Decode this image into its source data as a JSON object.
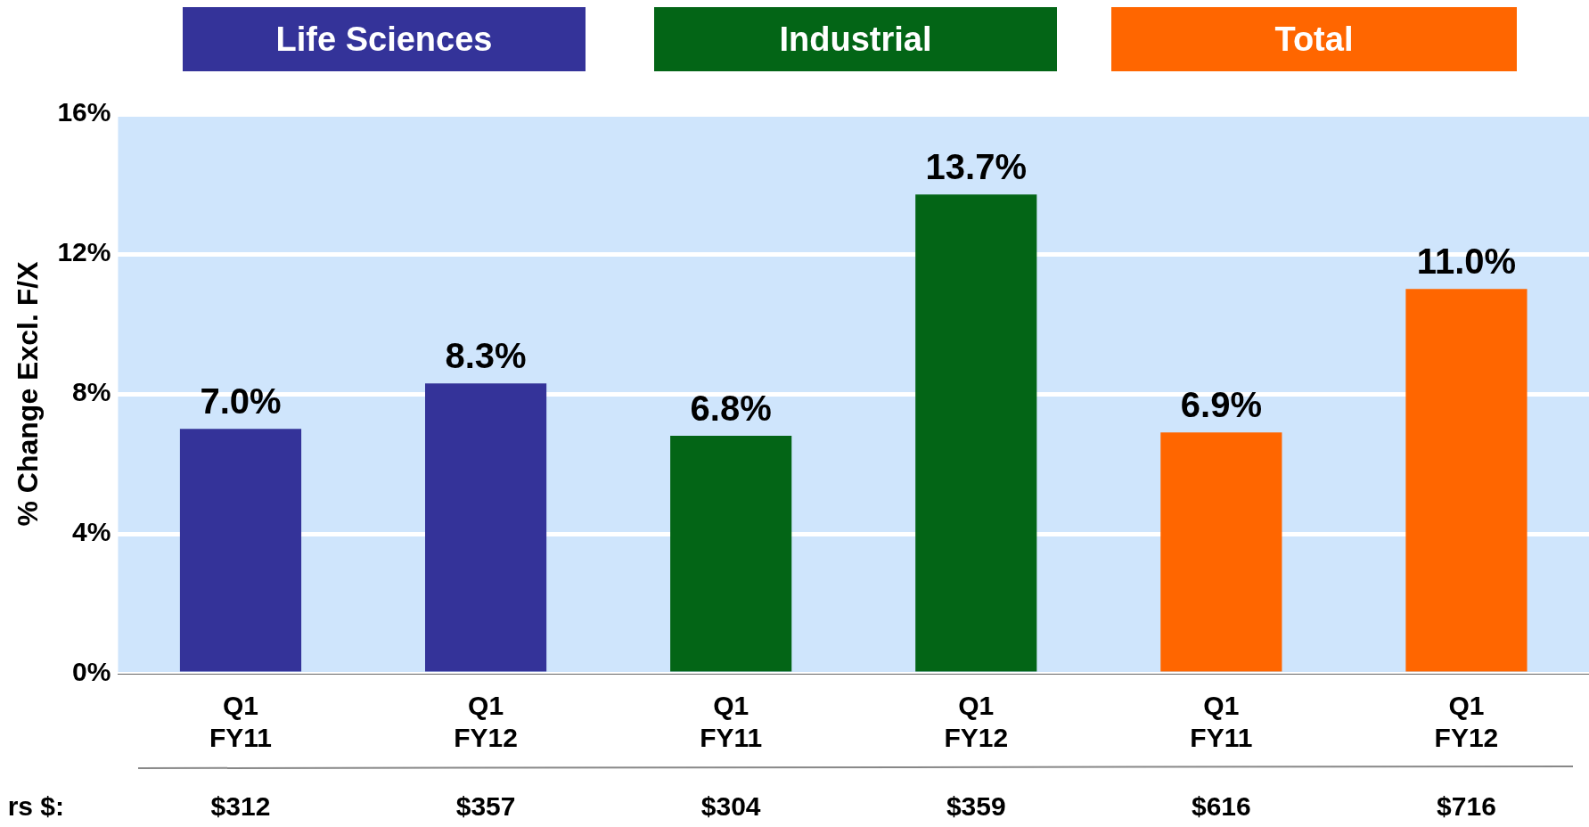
{
  "chart_data": {
    "type": "bar",
    "ylabel": "% Change Excl. F/X",
    "categories": [
      "Q1 FY11",
      "Q1 FY12",
      "Q1 FY11",
      "Q1 FY12",
      "Q1 FY11",
      "Q1 FY12"
    ],
    "series": [
      {
        "name": "Life Sciences",
        "color": "#343399",
        "values": [
          7.0,
          8.3,
          null,
          null,
          null,
          null
        ],
        "value_labels": [
          "7.0%",
          "8.3%",
          null,
          null,
          null,
          null
        ]
      },
      {
        "name": "Industrial",
        "color": "#036516",
        "values": [
          null,
          null,
          6.8,
          13.7,
          null,
          null
        ],
        "value_labels": [
          null,
          null,
          "6.8%",
          "13.7%",
          null,
          null
        ]
      },
      {
        "name": "Total",
        "color": "#ff6600",
        "values": [
          null,
          null,
          null,
          null,
          6.9,
          11.0
        ],
        "value_labels": [
          null,
          null,
          null,
          null,
          "6.9%",
          "11.0%"
        ]
      }
    ],
    "ylim": [
      0,
      16
    ],
    "yticks": [
      {
        "value": 0,
        "label": "0%"
      },
      {
        "value": 4,
        "label": "4%"
      },
      {
        "value": 8,
        "label": "8%"
      },
      {
        "value": 12,
        "label": "12%"
      },
      {
        "value": 16,
        "label": "16%"
      }
    ],
    "grid": "y",
    "legend": "top",
    "annotations": [
      "rs $:",
      "$312",
      "$357",
      "$304",
      "$359",
      "$616",
      "$716"
    ]
  }
}
